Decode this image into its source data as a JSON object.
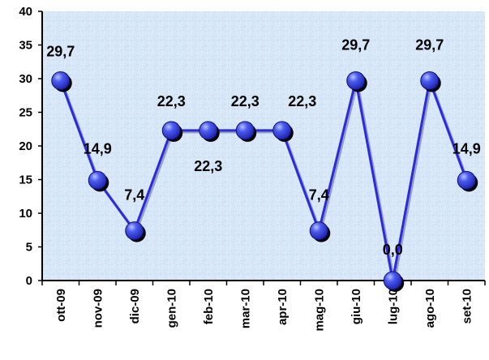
{
  "chart_data": {
    "type": "line",
    "categories": [
      "ott-09",
      "nov-09",
      "dic-09",
      "gen-10",
      "feb-10",
      "mar-10",
      "apr-10",
      "mag-10",
      "giu-10",
      "lug-10",
      "ago-10",
      "set-10"
    ],
    "series": [
      {
        "values": [
          29.7,
          14.9,
          7.4,
          22.3,
          22.3,
          22.3,
          22.3,
          7.4,
          29.7,
          0.0,
          29.7,
          14.9
        ]
      }
    ],
    "data_labels": [
      "29,7",
      "14,9",
      "7,4",
      "22,3",
      "22,3",
      "22,3",
      "22,3",
      "7,4",
      "29,7",
      "0,0",
      "29,7",
      "14,9"
    ],
    "ylim": [
      0,
      40
    ],
    "yticks": [
      0,
      5,
      10,
      15,
      20,
      25,
      30,
      35,
      40
    ],
    "xlabel": "",
    "ylabel": "",
    "title": "",
    "grid": false,
    "legend": "none",
    "colors": {
      "line": "#2b2bd9",
      "marker": "#2233cc",
      "marker_highlight": "#9aa8ff",
      "shadow": "#000000",
      "plot_bg": "#d6e6f7",
      "axis": "#000000"
    }
  }
}
